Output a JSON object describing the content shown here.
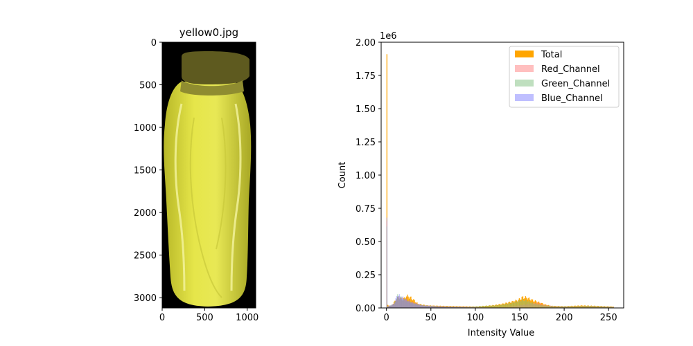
{
  "chart_data": [
    {
      "type": "image",
      "title": "yellow0.jpg",
      "xlim": [
        0,
        1100
      ],
      "ylim": [
        3120,
        0
      ],
      "x_ticks": [
        0,
        500,
        1000
      ],
      "y_ticks": [
        0,
        500,
        1000,
        1500,
        2000,
        2500,
        3000
      ],
      "image_content": "yellow-water-bottle"
    },
    {
      "type": "histogram",
      "title": "",
      "xlabel": "Intensity Value",
      "ylabel": "Count",
      "y_scale_label": "1e6",
      "xlim": [
        -6,
        267
      ],
      "ylim": [
        0,
        2.0
      ],
      "x_ticks": [
        0,
        50,
        100,
        150,
        200,
        250
      ],
      "y_ticks": [
        0.0,
        0.25,
        0.5,
        0.75,
        1.0,
        1.25,
        1.5,
        1.75,
        2.0
      ],
      "y_tick_labels": [
        "0.00",
        "0.25",
        "0.50",
        "0.75",
        "1.00",
        "1.25",
        "1.50",
        "1.75",
        "2.00"
      ],
      "legend_position": "top-right",
      "bin_width": 1,
      "series": [
        {
          "name": "Total",
          "color": "#ffa500",
          "points": [
            [
              0,
              1.91
            ],
            [
              1,
              0.02
            ],
            [
              5,
              0.015
            ],
            [
              10,
              0.06
            ],
            [
              13,
              0.08
            ],
            [
              18,
              0.06
            ],
            [
              22,
              0.09
            ],
            [
              26,
              0.08
            ],
            [
              30,
              0.06
            ],
            [
              35,
              0.03
            ],
            [
              45,
              0.018
            ],
            [
              60,
              0.015
            ],
            [
              80,
              0.012
            ],
            [
              100,
              0.01
            ],
            [
              110,
              0.015
            ],
            [
              120,
              0.02
            ],
            [
              130,
              0.03
            ],
            [
              140,
              0.045
            ],
            [
              148,
              0.06
            ],
            [
              153,
              0.08
            ],
            [
              158,
              0.075
            ],
            [
              165,
              0.055
            ],
            [
              172,
              0.04
            ],
            [
              178,
              0.025
            ],
            [
              185,
              0.015
            ],
            [
              200,
              0.012
            ],
            [
              220,
              0.018
            ],
            [
              235,
              0.015
            ],
            [
              245,
              0.012
            ],
            [
              255,
              0.01
            ]
          ]
        },
        {
          "name": "Red_Channel",
          "color": "#ff8080",
          "points": [
            [
              0,
              0.64
            ],
            [
              1,
              0.01
            ],
            [
              8,
              0.03
            ],
            [
              12,
              0.07
            ],
            [
              15,
              0.08
            ],
            [
              20,
              0.06
            ],
            [
              25,
              0.05
            ],
            [
              30,
              0.04
            ],
            [
              40,
              0.02
            ],
            [
              55,
              0.015
            ],
            [
              70,
              0.012
            ],
            [
              90,
              0.01
            ],
            [
              110,
              0.005
            ],
            [
              130,
              0.005
            ],
            [
              140,
              0.01
            ],
            [
              150,
              0.02
            ],
            [
              160,
              0.03
            ],
            [
              170,
              0.04
            ],
            [
              178,
              0.02
            ],
            [
              190,
              0.012
            ],
            [
              210,
              0.01
            ],
            [
              230,
              0.012
            ],
            [
              255,
              0.008
            ]
          ]
        },
        {
          "name": "Green_Channel",
          "color": "#80bf80",
          "points": [
            [
              0,
              0.64
            ],
            [
              1,
              0.01
            ],
            [
              8,
              0.03
            ],
            [
              12,
              0.09
            ],
            [
              15,
              0.08
            ],
            [
              20,
              0.06
            ],
            [
              25,
              0.045
            ],
            [
              30,
              0.035
            ],
            [
              40,
              0.02
            ],
            [
              60,
              0.012
            ],
            [
              90,
              0.008
            ],
            [
              110,
              0.015
            ],
            [
              125,
              0.02
            ],
            [
              135,
              0.03
            ],
            [
              145,
              0.045
            ],
            [
              152,
              0.06
            ],
            [
              158,
              0.055
            ],
            [
              165,
              0.035
            ],
            [
              175,
              0.02
            ],
            [
              190,
              0.012
            ],
            [
              210,
              0.012
            ],
            [
              225,
              0.015
            ],
            [
              240,
              0.012
            ],
            [
              255,
              0.008
            ]
          ]
        },
        {
          "name": "Blue_Channel",
          "color": "#8080ff",
          "points": [
            [
              0,
              0.64
            ],
            [
              1,
              0.01
            ],
            [
              8,
              0.03
            ],
            [
              12,
              0.1
            ],
            [
              15,
              0.085
            ],
            [
              20,
              0.07
            ],
            [
              25,
              0.05
            ],
            [
              30,
              0.035
            ],
            [
              40,
              0.018
            ],
            [
              55,
              0.01
            ],
            [
              70,
              0.006
            ],
            [
              90,
              0.004
            ],
            [
              110,
              0.002
            ],
            [
              130,
              0.001
            ],
            [
              150,
              0.001
            ],
            [
              200,
              0.0
            ],
            [
              255,
              0.0
            ]
          ]
        }
      ]
    }
  ]
}
